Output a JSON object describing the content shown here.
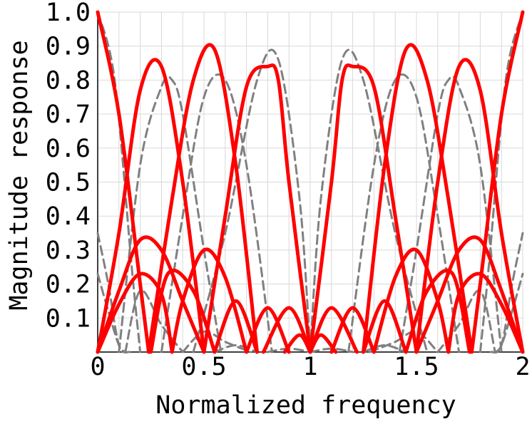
{
  "chart_data": {
    "type": "line",
    "title": "",
    "xlabel": "Normalized frequency",
    "ylabel": "Magnitude response",
    "xlim": [
      0,
      2
    ],
    "ylim": [
      0,
      1
    ],
    "xticks": [
      "0",
      "0.5",
      "1",
      "1.5",
      "2"
    ],
    "yticks": [
      "0.1",
      "0.2",
      "0.3",
      "0.4",
      "0.5",
      "0.6",
      "0.7",
      "0.8",
      "0.9",
      "1.0"
    ],
    "grid": true,
    "legend": "none",
    "colors": {
      "solid": "#ff0000",
      "dashed": "#808080",
      "grid": "#d9d9d9"
    },
    "series": [
      {
        "style": "solid",
        "x": [
          0,
          0.1,
          0.2,
          0.24
        ],
        "y": [
          1.0,
          0.7,
          0.2,
          0.0
        ]
      },
      {
        "style": "solid",
        "x": [
          0,
          0.1,
          0.2,
          0.3,
          0.4,
          0.5
        ],
        "y": [
          0.0,
          0.35,
          0.77,
          0.84,
          0.5,
          0.0
        ]
      },
      {
        "style": "solid",
        "x": [
          0.24,
          0.35,
          0.45,
          0.55,
          0.65,
          0.75
        ],
        "y": [
          0.0,
          0.45,
          0.8,
          0.89,
          0.55,
          0.0
        ]
      },
      {
        "style": "solid",
        "x": [
          0.5,
          0.6,
          0.7,
          0.8,
          0.85,
          0.9,
          1.0
        ],
        "y": [
          0.0,
          0.4,
          0.78,
          0.84,
          0.8,
          0.5,
          0.0
        ]
      },
      {
        "style": "solid",
        "x": [
          1.0,
          1.1,
          1.15,
          1.2,
          1.3,
          1.4,
          1.5
        ],
        "y": [
          0.0,
          0.5,
          0.8,
          0.84,
          0.78,
          0.4,
          0.0
        ]
      },
      {
        "style": "solid",
        "x": [
          1.25,
          1.35,
          1.45,
          1.55,
          1.65,
          1.76
        ],
        "y": [
          0.0,
          0.55,
          0.89,
          0.8,
          0.45,
          0.0
        ]
      },
      {
        "style": "solid",
        "x": [
          1.5,
          1.6,
          1.7,
          1.8,
          1.9,
          2.0
        ],
        "y": [
          0.0,
          0.5,
          0.84,
          0.77,
          0.35,
          0.0
        ]
      },
      {
        "style": "solid",
        "x": [
          1.76,
          1.8,
          1.9,
          2.0
        ],
        "y": [
          0.0,
          0.2,
          0.7,
          1.0
        ]
      },
      {
        "style": "solid",
        "x": [
          0,
          0.1,
          0.2,
          0.3,
          0.4,
          0.5
        ],
        "y": [
          0.0,
          0.18,
          0.33,
          0.3,
          0.15,
          0.0
        ]
      },
      {
        "style": "solid",
        "x": [
          0,
          0.1,
          0.2,
          0.3,
          0.35
        ],
        "y": [
          0.0,
          0.14,
          0.23,
          0.17,
          0.0
        ]
      },
      {
        "style": "solid",
        "x": [
          0.35,
          0.4,
          0.5,
          0.6,
          0.7
        ],
        "y": [
          0.0,
          0.15,
          0.3,
          0.22,
          0.0
        ]
      },
      {
        "style": "solid",
        "x": [
          0.25,
          0.33,
          0.45,
          0.55
        ],
        "y": [
          0.0,
          0.23,
          0.18,
          0.0
        ]
      },
      {
        "style": "solid",
        "x": [
          0.55,
          0.65,
          0.75
        ],
        "y": [
          0.0,
          0.15,
          0.0
        ]
      },
      {
        "style": "solid",
        "x": [
          0.7,
          0.8,
          0.9
        ],
        "y": [
          0.0,
          0.13,
          0.0
        ]
      },
      {
        "style": "solid",
        "x": [
          0.78,
          0.9,
          1.0
        ],
        "y": [
          0.0,
          0.13,
          0.0
        ]
      },
      {
        "style": "solid",
        "x": [
          0.88,
          0.95,
          1.0
        ],
        "y": [
          0.0,
          0.05,
          0.0
        ]
      },
      {
        "style": "solid",
        "x": [
          1.0,
          1.05,
          1.12
        ],
        "y": [
          0.0,
          0.05,
          0.0
        ]
      },
      {
        "style": "solid",
        "x": [
          1.0,
          1.1,
          1.22
        ],
        "y": [
          0.0,
          0.13,
          0.0
        ]
      },
      {
        "style": "solid",
        "x": [
          1.1,
          1.2,
          1.3
        ],
        "y": [
          0.0,
          0.13,
          0.0
        ]
      },
      {
        "style": "solid",
        "x": [
          1.25,
          1.35,
          1.45
        ],
        "y": [
          0.0,
          0.15,
          0.0
        ]
      },
      {
        "style": "solid",
        "x": [
          1.3,
          1.4,
          1.5,
          1.6,
          1.65
        ],
        "y": [
          0.0,
          0.22,
          0.3,
          0.15,
          0.0
        ]
      },
      {
        "style": "solid",
        "x": [
          1.45,
          1.55,
          1.67,
          1.75
        ],
        "y": [
          0.0,
          0.18,
          0.23,
          0.0
        ]
      },
      {
        "style": "solid",
        "x": [
          1.5,
          1.6,
          1.7,
          1.8,
          1.9,
          2.0
        ],
        "y": [
          0.0,
          0.15,
          0.3,
          0.33,
          0.18,
          0.0
        ]
      },
      {
        "style": "solid",
        "x": [
          1.65,
          1.7,
          1.8,
          1.9,
          2.0
        ],
        "y": [
          0.0,
          0.17,
          0.23,
          0.14,
          0.0
        ]
      },
      {
        "style": "dashed",
        "x": [
          0,
          0.08,
          0.16,
          0.2
        ],
        "y": [
          1.0,
          0.8,
          0.25,
          0.0
        ]
      },
      {
        "style": "dashed",
        "x": [
          0.1,
          0.2,
          0.3,
          0.35,
          0.4,
          0.5,
          0.58
        ],
        "y": [
          0.0,
          0.55,
          0.78,
          0.8,
          0.7,
          0.3,
          0.0
        ]
      },
      {
        "style": "dashed",
        "x": [
          0.3,
          0.4,
          0.5,
          0.6,
          0.7,
          0.82
        ],
        "y": [
          0.0,
          0.4,
          0.75,
          0.8,
          0.55,
          0.0
        ]
      },
      {
        "style": "dashed",
        "x": [
          0.45,
          0.6,
          0.75,
          0.85,
          0.95,
          1.0
        ],
        "y": [
          0.0,
          0.35,
          0.8,
          0.86,
          0.45,
          0.0
        ]
      },
      {
        "style": "dashed",
        "x": [
          1.0,
          1.05,
          1.15,
          1.25,
          1.4,
          1.55
        ],
        "y": [
          0.0,
          0.45,
          0.86,
          0.8,
          0.35,
          0.0
        ]
      },
      {
        "style": "dashed",
        "x": [
          1.18,
          1.3,
          1.4,
          1.5,
          1.6,
          1.7
        ],
        "y": [
          0.0,
          0.55,
          0.8,
          0.75,
          0.4,
          0.0
        ]
      },
      {
        "style": "dashed",
        "x": [
          1.42,
          1.5,
          1.6,
          1.65,
          1.7,
          1.8,
          1.9
        ],
        "y": [
          0.0,
          0.3,
          0.7,
          0.8,
          0.78,
          0.55,
          0.0
        ]
      },
      {
        "style": "dashed",
        "x": [
          1.8,
          1.84,
          1.92,
          2.0
        ],
        "y": [
          0.0,
          0.25,
          0.8,
          1.0
        ]
      },
      {
        "style": "dashed",
        "x": [
          0,
          0.05,
          0.1,
          0.15
        ],
        "y": [
          0.35,
          0.2,
          0.02,
          0.0
        ]
      },
      {
        "style": "dashed",
        "x": [
          0,
          0.05,
          0.1,
          0.13
        ],
        "y": [
          0.23,
          0.12,
          0.02,
          0.0
        ]
      },
      {
        "style": "dashed",
        "x": [
          0.13,
          0.2,
          0.3,
          0.4
        ],
        "y": [
          0.0,
          0.18,
          0.08,
          0.0
        ]
      },
      {
        "style": "dashed",
        "x": [
          0.4,
          0.5,
          0.6,
          0.72
        ],
        "y": [
          0.0,
          0.06,
          0.03,
          0.0
        ]
      },
      {
        "style": "dashed",
        "x": [
          0.55,
          0.65,
          0.75
        ],
        "y": [
          0.0,
          0.02,
          0.0
        ]
      },
      {
        "style": "dashed",
        "x": [
          0.8,
          0.9,
          1.0
        ],
        "y": [
          0.0,
          0.01,
          0.0
        ]
      },
      {
        "style": "dashed",
        "x": [
          1.0,
          1.1,
          1.2
        ],
        "y": [
          0.0,
          0.01,
          0.0
        ]
      },
      {
        "style": "dashed",
        "x": [
          1.25,
          1.35,
          1.45
        ],
        "y": [
          0.0,
          0.02,
          0.0
        ]
      },
      {
        "style": "dashed",
        "x": [
          1.28,
          1.4,
          1.5,
          1.6
        ],
        "y": [
          0.0,
          0.03,
          0.06,
          0.0
        ]
      },
      {
        "style": "dashed",
        "x": [
          1.6,
          1.7,
          1.8,
          1.87
        ],
        "y": [
          0.0,
          0.08,
          0.18,
          0.0
        ]
      },
      {
        "style": "dashed",
        "x": [
          1.85,
          1.9,
          1.95,
          2.0
        ],
        "y": [
          0.0,
          0.02,
          0.2,
          0.35
        ]
      },
      {
        "style": "dashed",
        "x": [
          1.87,
          1.9,
          1.95,
          2.0
        ],
        "y": [
          0.0,
          0.02,
          0.12,
          0.23
        ]
      }
    ]
  }
}
